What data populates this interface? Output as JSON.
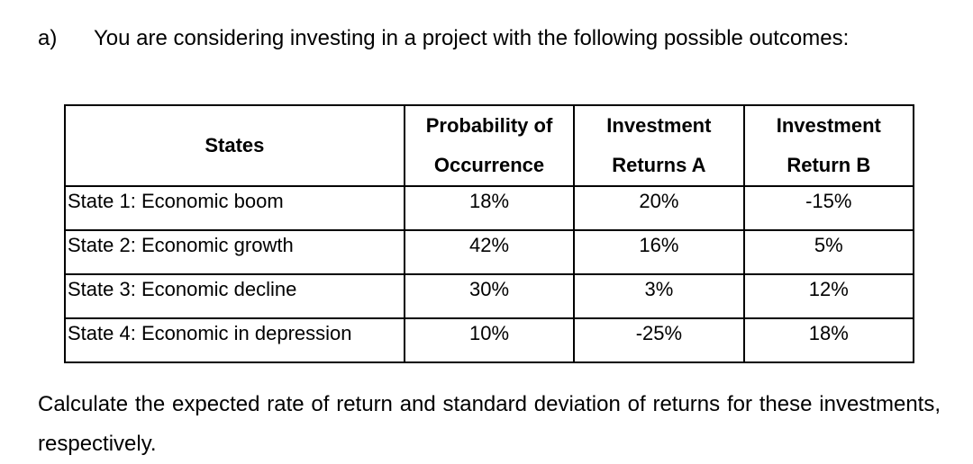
{
  "question": {
    "label": "a)",
    "intro": "You are considering investing in a project with the following possible outcomes:",
    "task": "Calculate the expected rate of return and standard deviation of returns for these investments, respectively."
  },
  "table": {
    "headers": {
      "states": "States",
      "probability": [
        "Probability of",
        "Occurrence"
      ],
      "investment_a": [
        "Investment",
        "Returns A"
      ],
      "investment_b": [
        "Investment",
        "Return B"
      ]
    },
    "rows": [
      {
        "state": "State 1: Economic boom",
        "probability": "18%",
        "return_a": "20%",
        "return_b": "-15%"
      },
      {
        "state": "State 2: Economic growth",
        "probability": "42%",
        "return_a": "16%",
        "return_b": "5%"
      },
      {
        "state": "State 3: Economic decline",
        "probability": "30%",
        "return_a": "3%",
        "return_b": "12%"
      },
      {
        "state": "State 4: Economic in depression",
        "probability": "10%",
        "return_a": "-25%",
        "return_b": "18%"
      }
    ]
  }
}
